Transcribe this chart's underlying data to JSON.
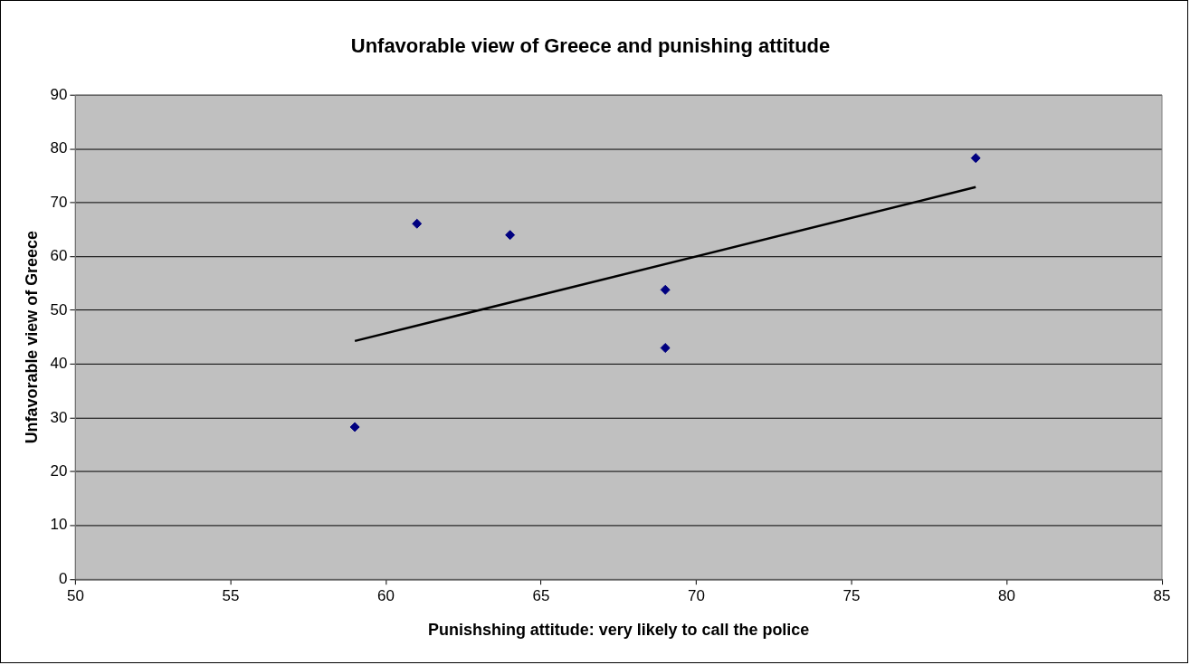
{
  "chart_data": {
    "type": "scatter",
    "title": "Unfavorable view of Greece and punishing attitude",
    "xlabel": "Punishshing attitude: very likely to call the police",
    "ylabel": "Unfavorable view of Greece",
    "series": [
      {
        "type": "scatter",
        "color": "#000080",
        "marker": "diamond",
        "x": [
          59,
          61,
          64,
          69,
          69,
          79
        ],
        "values": [
          28.3,
          66.1,
          64,
          53.8,
          43,
          78.3
        ]
      },
      {
        "type": "line",
        "color": "#000000",
        "marker": "none",
        "x": [
          59,
          79
        ],
        "values": [
          44.3,
          72.9
        ]
      }
    ],
    "xlim": [
      50,
      85
    ],
    "xticks": [
      50,
      55,
      60,
      65,
      70,
      75,
      80,
      85
    ],
    "ylim": [
      0,
      90
    ],
    "yticks": [
      0,
      10,
      20,
      30,
      40,
      50,
      60,
      70,
      80,
      90
    ],
    "grid": "y",
    "legend": false
  }
}
